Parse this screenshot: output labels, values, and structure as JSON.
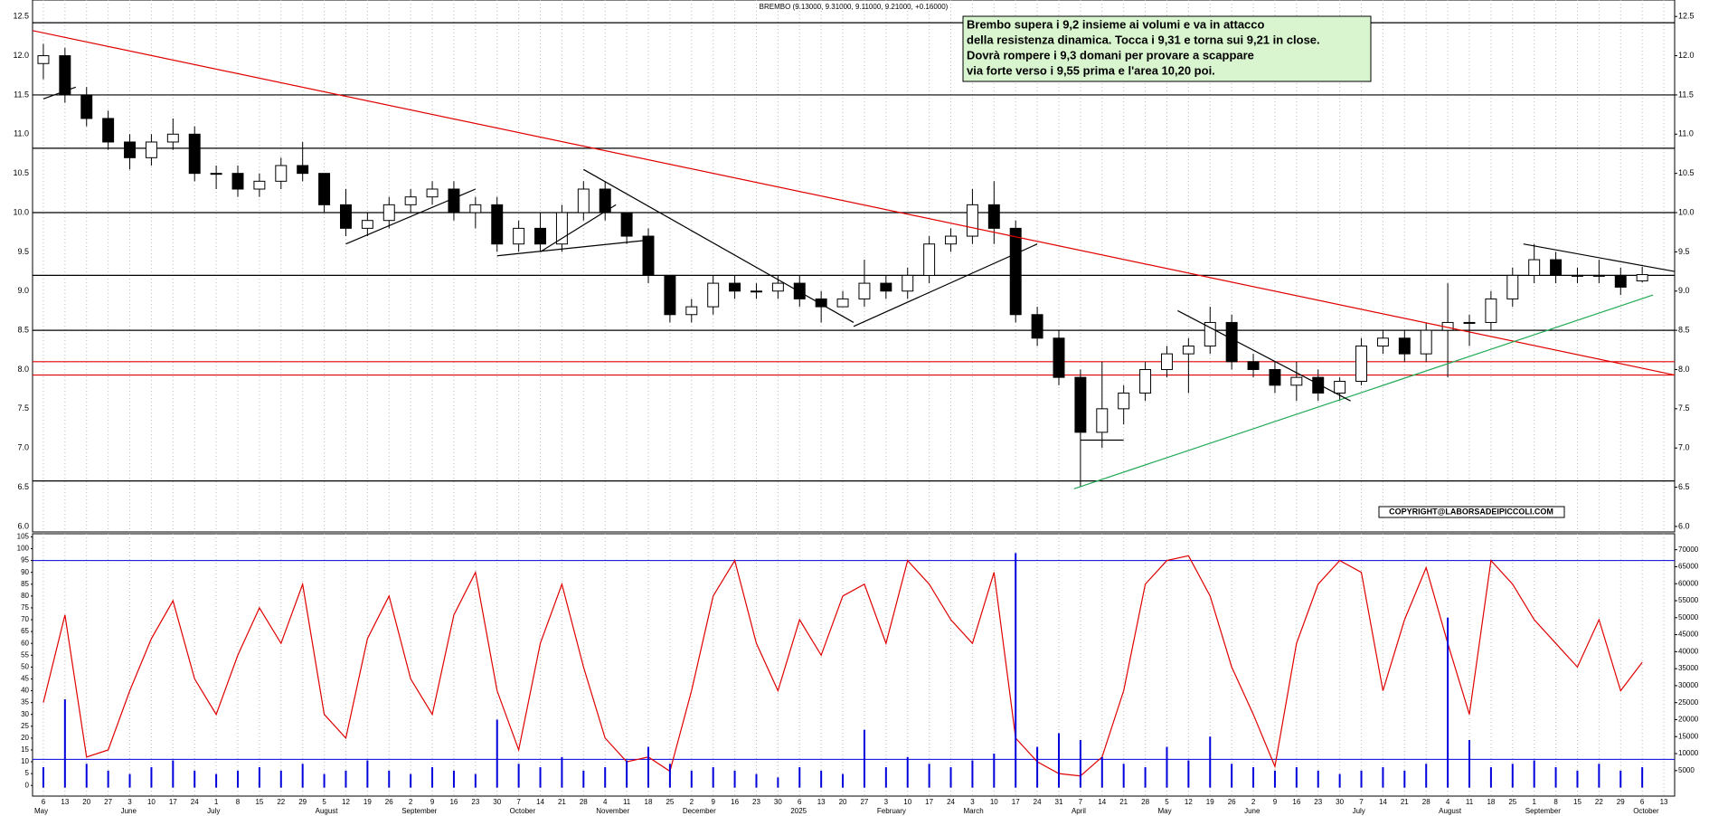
{
  "chart_data": [
    {
      "type": "candlestick",
      "title": "BREMBO (9.13000, 9.31000, 9.11000, 9.21000, +0.16000)",
      "annotation": [
        "Brembo supera i 9,2 insieme ai volumi e va in attacco",
        "della resistenza dinamica. Tocca i 9,31 e torna sui 9,21 in close.",
        "Dovrà rompere i 9,3 domani per provare a scappare",
        "via forte verso i 9,55 prima e l'area 10,20 poi."
      ],
      "copyright": "COPYRIGHT@LABORSADEIPICCOLI.COM",
      "categories": [
        "6",
        "13",
        "20",
        "27",
        "3",
        "10",
        "17",
        "24",
        "1",
        "8",
        "15",
        "22",
        "29",
        "5",
        "12",
        "19",
        "26",
        "2",
        "9",
        "16",
        "23",
        "30",
        "7",
        "14",
        "21",
        "28",
        "4",
        "11",
        "18",
        "25",
        "2",
        "9",
        "16",
        "23",
        "30",
        "6",
        "13",
        "20",
        "27",
        "3",
        "10",
        "17",
        "24",
        "3",
        "10",
        "17",
        "24",
        "31",
        "7",
        "14",
        "21",
        "28",
        "5",
        "12",
        "19",
        "26",
        "2",
        "9",
        "16",
        "23",
        "30",
        "7",
        "14",
        "21",
        "28",
        "4",
        "11",
        "18",
        "25",
        "1",
        "8",
        "15",
        "22",
        "29",
        "6",
        "13"
      ],
      "month_labels": [
        "May",
        null,
        null,
        null,
        "June",
        null,
        null,
        null,
        "July",
        null,
        null,
        null,
        null,
        "August",
        null,
        null,
        null,
        "September",
        null,
        null,
        null,
        null,
        "October",
        null,
        null,
        null,
        "November",
        null,
        null,
        null,
        "December",
        null,
        null,
        null,
        null,
        "2025",
        null,
        null,
        null,
        "February",
        null,
        null,
        null,
        "March",
        null,
        null,
        null,
        null,
        "April",
        null,
        null,
        null,
        "May",
        null,
        null,
        null,
        "June",
        null,
        null,
        null,
        null,
        "July",
        null,
        null,
        null,
        "August",
        null,
        null,
        null,
        "September",
        null,
        null,
        null,
        null,
        "October",
        null
      ],
      "ohlc": [
        [
          11.9,
          12.15,
          11.7,
          12.0
        ],
        [
          12.0,
          12.1,
          11.4,
          11.5
        ],
        [
          11.5,
          11.6,
          11.1,
          11.2
        ],
        [
          11.2,
          11.3,
          10.8,
          10.9
        ],
        [
          10.9,
          11.0,
          10.55,
          10.7
        ],
        [
          10.7,
          11.0,
          10.6,
          10.9
        ],
        [
          10.9,
          11.2,
          10.8,
          11.0
        ],
        [
          11.0,
          11.1,
          10.4,
          10.5
        ],
        [
          10.5,
          10.6,
          10.3,
          10.5
        ],
        [
          10.5,
          10.6,
          10.2,
          10.3
        ],
        [
          10.3,
          10.5,
          10.2,
          10.4
        ],
        [
          10.4,
          10.7,
          10.3,
          10.6
        ],
        [
          10.6,
          10.9,
          10.4,
          10.5
        ],
        [
          10.5,
          10.5,
          10.0,
          10.1
        ],
        [
          10.1,
          10.3,
          9.7,
          9.8
        ],
        [
          9.8,
          10.0,
          9.7,
          9.9
        ],
        [
          9.9,
          10.2,
          9.8,
          10.1
        ],
        [
          10.1,
          10.3,
          10.0,
          10.2
        ],
        [
          10.2,
          10.4,
          10.1,
          10.3
        ],
        [
          10.3,
          10.4,
          9.9,
          10.0
        ],
        [
          10.0,
          10.2,
          9.8,
          10.1
        ],
        [
          10.1,
          10.2,
          9.5,
          9.6
        ],
        [
          9.6,
          9.9,
          9.5,
          9.8
        ],
        [
          9.8,
          10.0,
          9.5,
          9.6
        ],
        [
          9.6,
          10.1,
          9.5,
          10.0
        ],
        [
          10.0,
          10.4,
          9.9,
          10.3
        ],
        [
          10.3,
          10.4,
          9.9,
          10.0
        ],
        [
          10.0,
          10.0,
          9.6,
          9.7
        ],
        [
          9.7,
          9.8,
          9.1,
          9.2
        ],
        [
          9.2,
          9.2,
          8.6,
          8.7
        ],
        [
          8.7,
          8.9,
          8.6,
          8.8
        ],
        [
          8.8,
          9.2,
          8.7,
          9.1
        ],
        [
          9.1,
          9.2,
          8.9,
          9.0
        ],
        [
          9.0,
          9.1,
          8.9,
          9.0
        ],
        [
          9.0,
          9.2,
          8.9,
          9.1
        ],
        [
          9.1,
          9.2,
          8.8,
          8.9
        ],
        [
          8.9,
          9.0,
          8.6,
          8.8
        ],
        [
          8.8,
          9.0,
          8.8,
          8.9
        ],
        [
          8.9,
          9.4,
          8.8,
          9.1
        ],
        [
          9.1,
          9.2,
          8.9,
          9.0
        ],
        [
          9.0,
          9.3,
          8.9,
          9.2
        ],
        [
          9.2,
          9.7,
          9.1,
          9.6
        ],
        [
          9.6,
          9.8,
          9.5,
          9.7
        ],
        [
          9.7,
          10.3,
          9.6,
          10.1
        ],
        [
          10.1,
          10.4,
          9.6,
          9.8
        ],
        [
          9.8,
          9.9,
          8.6,
          8.7
        ],
        [
          8.7,
          8.8,
          8.3,
          8.4
        ],
        [
          8.4,
          8.5,
          7.8,
          7.9
        ],
        [
          7.9,
          8.0,
          6.5,
          7.2
        ],
        [
          7.2,
          8.1,
          7.0,
          7.5
        ],
        [
          7.5,
          7.8,
          7.3,
          7.7
        ],
        [
          7.7,
          8.1,
          7.6,
          8.0
        ],
        [
          8.0,
          8.3,
          7.9,
          8.2
        ],
        [
          8.2,
          8.4,
          7.7,
          8.3
        ],
        [
          8.3,
          8.8,
          8.2,
          8.6
        ],
        [
          8.6,
          8.7,
          8.0,
          8.1
        ],
        [
          8.1,
          8.2,
          7.9,
          8.0
        ],
        [
          8.0,
          8.1,
          7.7,
          7.8
        ],
        [
          7.8,
          8.1,
          7.6,
          7.9
        ],
        [
          7.9,
          8.0,
          7.6,
          7.7
        ],
        [
          7.7,
          7.9,
          7.6,
          7.85
        ],
        [
          7.85,
          8.4,
          7.8,
          8.3
        ],
        [
          8.3,
          8.5,
          8.2,
          8.4
        ],
        [
          8.4,
          8.5,
          8.1,
          8.2
        ],
        [
          8.2,
          8.6,
          8.1,
          8.5
        ],
        [
          8.5,
          9.1,
          7.9,
          8.6
        ],
        [
          8.6,
          8.7,
          8.3,
          8.6
        ],
        [
          8.6,
          9.0,
          8.5,
          8.9
        ],
        [
          8.9,
          9.3,
          8.8,
          9.2
        ],
        [
          9.2,
          9.6,
          9.1,
          9.4
        ],
        [
          9.4,
          9.5,
          9.1,
          9.2
        ],
        [
          9.2,
          9.3,
          9.1,
          9.2
        ],
        [
          9.2,
          9.4,
          9.1,
          9.2
        ],
        [
          9.2,
          9.3,
          8.95,
          9.05
        ],
        [
          9.13,
          9.31,
          9.11,
          9.21
        ],
        null
      ],
      "ylim": [
        5.93,
        12.71
      ],
      "yticks": [
        {
          "value": 6,
          "label": "6.0"
        },
        {
          "value": 6.5,
          "label": "6.5"
        },
        {
          "value": 7,
          "label": "7.0"
        },
        {
          "value": 7.5,
          "label": "7.5"
        },
        {
          "value": 8,
          "label": "8.0"
        },
        {
          "value": 8.5,
          "label": "8.5"
        },
        {
          "value": 9,
          "label": "9.0"
        },
        {
          "value": 9.5,
          "label": "9.5"
        },
        {
          "value": 10,
          "label": "10.0"
        },
        {
          "value": 10.5,
          "label": "10.5"
        },
        {
          "value": 11,
          "label": "11.0"
        },
        {
          "value": 11.5,
          "label": "11.5"
        },
        {
          "value": 12,
          "label": "12.0"
        },
        {
          "value": 12.5,
          "label": "12.5"
        }
      ],
      "hlines": [
        {
          "value": 12.42,
          "color": "#000000"
        },
        {
          "value": 11.5,
          "color": "#000000"
        },
        {
          "value": 10.82,
          "color": "#000000"
        },
        {
          "value": 10.0,
          "color": "#000000"
        },
        {
          "value": 9.2,
          "color": "#000000"
        },
        {
          "value": 8.5,
          "color": "#000000"
        },
        {
          "value": 8.1,
          "color": "#e00000"
        },
        {
          "value": 7.93,
          "color": "#e00000"
        },
        {
          "value": 6.58,
          "color": "#000000"
        }
      ],
      "trendlines": [
        {
          "x": [
            -0.5,
            75.5
          ],
          "y": [
            12.32,
            7.93
          ],
          "color": "#e00000"
        },
        {
          "x": [
            47.7,
            74.5
          ],
          "y": [
            6.48,
            8.95
          ],
          "color": "#22aa55"
        },
        {
          "x": [
            14,
            20
          ],
          "y": [
            9.6,
            10.3
          ],
          "color": "#000000"
        },
        {
          "x": [
            21,
            28
          ],
          "y": [
            9.45,
            9.65
          ],
          "color": "#000000"
        },
        {
          "x": [
            23,
            26.5
          ],
          "y": [
            9.5,
            10.1
          ],
          "color": "#000000"
        },
        {
          "x": [
            25,
            37.5
          ],
          "y": [
            10.55,
            8.6
          ],
          "color": "#000000"
        },
        {
          "x": [
            37.5,
            46
          ],
          "y": [
            8.55,
            9.6
          ],
          "color": "#000000"
        },
        {
          "x": [
            52.5,
            60.5
          ],
          "y": [
            8.75,
            7.6
          ],
          "color": "#000000"
        },
        {
          "x": [
            68.5,
            75.5
          ],
          "y": [
            9.6,
            9.25
          ],
          "color": "#000000"
        },
        {
          "x": [
            0,
            1.5
          ],
          "y": [
            11.45,
            11.6
          ],
          "color": "#000000"
        },
        {
          "x": [
            48,
            50
          ],
          "y": [
            7.1,
            7.1
          ],
          "color": "#000000"
        }
      ],
      "grid": true
    },
    {
      "type": "line",
      "series": [
        {
          "color": "#e00000",
          "values": [
            35,
            72,
            12,
            15,
            40,
            62,
            78,
            45,
            30,
            55,
            75,
            60,
            85,
            30,
            20,
            62,
            80,
            45,
            30,
            72,
            90,
            40,
            15,
            60,
            85,
            50,
            20,
            10,
            12,
            6,
            40,
            80,
            95,
            60,
            40,
            70,
            55,
            80,
            85,
            60,
            95,
            85,
            70,
            60,
            90,
            20,
            10,
            5,
            4,
            12,
            40,
            85,
            95,
            97,
            80,
            50,
            30,
            8,
            60,
            85,
            95,
            90,
            40,
            70,
            92,
            60,
            30,
            95,
            85,
            70,
            60,
            50,
            70,
            40,
            52,
            null
          ]
        },
        {
          "color": "#0000dd",
          "axis": "y2",
          "values": [
            6000,
            26000,
            7000,
            5000,
            4000,
            6000,
            8000,
            5000,
            4000,
            5000,
            6000,
            5000,
            7000,
            4000,
            5000,
            8000,
            5000,
            4000,
            6000,
            5000,
            4000,
            20000,
            7000,
            6000,
            9000,
            5000,
            6000,
            8000,
            12000,
            7000,
            5000,
            6000,
            5000,
            4000,
            3000,
            6000,
            5000,
            4000,
            17000,
            6000,
            9000,
            7000,
            6000,
            8000,
            10000,
            69000,
            12000,
            16000,
            14000,
            9000,
            7000,
            6000,
            12000,
            8000,
            15000,
            7000,
            6000,
            5000,
            6000,
            5000,
            4000,
            5000,
            6000,
            5000,
            7000,
            50000,
            14000,
            6000,
            7000,
            8000,
            6000,
            5000,
            7000,
            5000,
            6000,
            null
          ]
        }
      ],
      "ylim": [
        -4.5,
        106.3
      ],
      "yticks": [
        0,
        5,
        10,
        15,
        20,
        25,
        30,
        35,
        40,
        45,
        50,
        55,
        60,
        65,
        70,
        75,
        80,
        85,
        90,
        95,
        100,
        105
      ],
      "y2lim": [
        -2500,
        74700
      ],
      "y2ticks": [
        5000,
        10000,
        15000,
        20000,
        25000,
        30000,
        35000,
        40000,
        45000,
        50000,
        55000,
        60000,
        65000,
        70000
      ],
      "hlines": [
        {
          "value": 95,
          "color": "#0000dd"
        },
        {
          "value": 11,
          "color": "#0000dd"
        }
      ]
    }
  ]
}
